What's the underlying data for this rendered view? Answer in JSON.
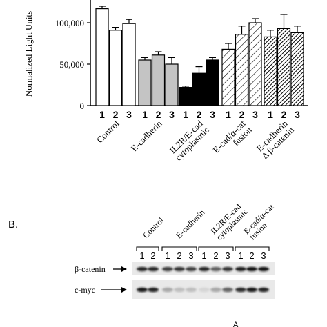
{
  "chart_data": {
    "type": "bar",
    "ylabel": "Normalized Light Units",
    "ylim": [
      0,
      125000
    ],
    "yticks": [
      0,
      50000,
      100000
    ],
    "ytick_labels": [
      "0",
      "50,000",
      "100,000"
    ],
    "groups": [
      {
        "name": "Control",
        "lines": [
          "Control"
        ],
        "fill": "white",
        "values": [
          117000,
          91000,
          99000
        ],
        "errors": [
          3000,
          3500,
          5000
        ]
      },
      {
        "name": "E-cadherin",
        "lines": [
          "E-cadherin"
        ],
        "fill": "light-gray",
        "values": [
          55000,
          61000,
          50000
        ],
        "errors": [
          3000,
          4000,
          8000
        ]
      },
      {
        "name": "IL2R/E-cad cytoplasmic",
        "lines": [
          "IL2R/E-cad",
          "cytoplasmic"
        ],
        "fill": "black",
        "values": [
          22000,
          39000,
          55000
        ],
        "errors": [
          1500,
          8000,
          3000
        ]
      },
      {
        "name": "E-cad/α-cat fusion",
        "lines": [
          "E-cad/α-cat",
          "fusion"
        ],
        "fill": "sparse-hatch",
        "values": [
          68000,
          86000,
          100000
        ],
        "errors": [
          7000,
          10000,
          5000
        ]
      },
      {
        "name": "E-cadherin Δ β-catenin",
        "lines": [
          "E-cadherin",
          "Δ β-catenin"
        ],
        "fill": "dense-hatch",
        "values": [
          83000,
          93000,
          88000
        ],
        "errors": [
          8000,
          17000,
          8000
        ]
      }
    ],
    "bar_labels": [
      "1",
      "2",
      "3"
    ]
  },
  "panel_b": {
    "label": "B.",
    "column_headers": [
      {
        "name": "Control",
        "lines": [
          "Control"
        ]
      },
      {
        "name": "E-cadherin",
        "lines": [
          "E-cadherin"
        ]
      },
      {
        "name": "IL2R/E-cad cytoplasmic",
        "lines": [
          "IL2R/E-cad",
          "cytoplasmic"
        ]
      },
      {
        "name": "E-cad/α-cat fusion",
        "lines": [
          "E-cad/α-cat",
          "fusion"
        ]
      }
    ],
    "lanes": [
      {
        "group": 0,
        "label": "1"
      },
      {
        "group": 0,
        "label": "2"
      },
      {
        "group": 1,
        "label": "1"
      },
      {
        "group": 1,
        "label": "2"
      },
      {
        "group": 1,
        "label": "3"
      },
      {
        "group": 2,
        "label": "1"
      },
      {
        "group": 2,
        "label": "2"
      },
      {
        "group": 2,
        "label": "3"
      },
      {
        "group": 3,
        "label": "1"
      },
      {
        "group": 3,
        "label": "2"
      },
      {
        "group": 3,
        "label": "3"
      }
    ],
    "blots": [
      {
        "name": "β-catenin",
        "label": "β-catenin",
        "intensity": [
          0.85,
          0.85,
          0.75,
          0.8,
          0.75,
          0.85,
          0.6,
          0.8,
          0.9,
          0.95,
          0.95
        ]
      },
      {
        "name": "c-myc",
        "label": "c-myc",
        "intensity": [
          0.95,
          0.9,
          0.3,
          0.2,
          0.2,
          0.1,
          0.3,
          0.6,
          0.85,
          0.95,
          0.9
        ]
      }
    ]
  },
  "footer_mark": "A"
}
